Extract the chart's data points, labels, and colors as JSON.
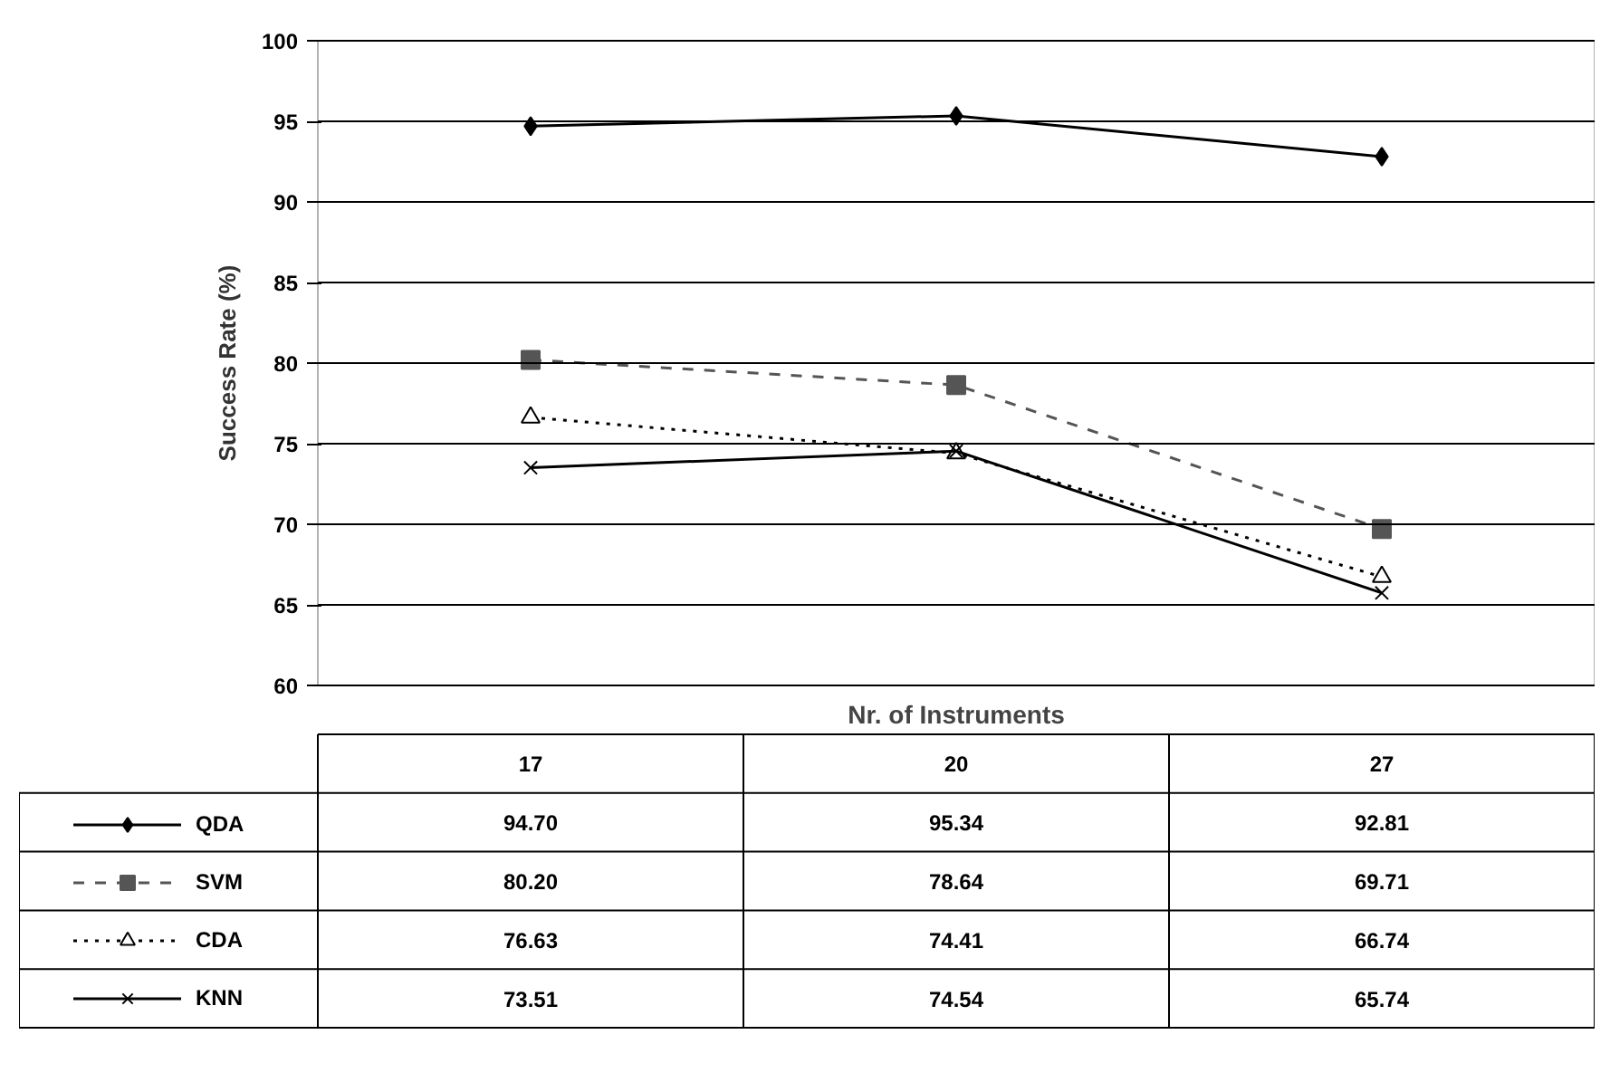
{
  "chart_data": {
    "type": "line",
    "xlabel": "Nr. of Instruments",
    "ylabel": "Success Rate (%)",
    "categories": [
      "17",
      "20",
      "27"
    ],
    "ylim": [
      60,
      100
    ],
    "yticks": [
      60,
      65,
      70,
      75,
      80,
      85,
      90,
      95,
      100
    ],
    "grid": "y",
    "tick_labels": "y",
    "legend": "bottom left",
    "series": [
      {
        "name": "QDA",
        "color": "#000000",
        "marker": "diamond",
        "line_style": "solid",
        "values": [
          94.7,
          95.34,
          92.81
        ],
        "value_labels": [
          "94.70",
          "95.34",
          "92.81"
        ]
      },
      {
        "name": "SVM",
        "color": "#555555",
        "marker": "square",
        "line_style": "dashed",
        "values": [
          80.2,
          78.64,
          69.71
        ],
        "value_labels": [
          "80.20",
          "78.64",
          "69.71"
        ]
      },
      {
        "name": "CDA",
        "color": "#000000",
        "marker": "triangle",
        "line_style": "dotted",
        "values": [
          76.63,
          74.41,
          66.74
        ],
        "value_labels": [
          "76.63",
          "74.41",
          "66.74"
        ]
      },
      {
        "name": "KNN",
        "color": "#000000",
        "marker": "cross",
        "line_style": "solid",
        "values": [
          73.51,
          74.54,
          65.74
        ],
        "value_labels": [
          "73.51",
          "74.54",
          "65.74"
        ]
      }
    ]
  }
}
